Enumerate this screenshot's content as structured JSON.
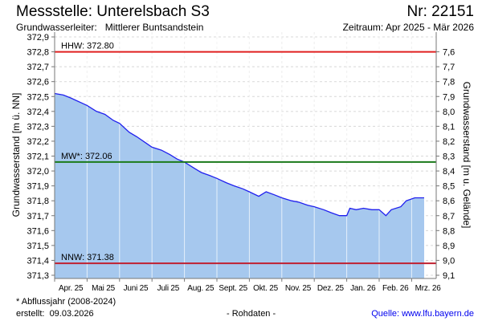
{
  "header": {
    "title": "Messstelle: Unterelsbach S3",
    "number": "Nr: 22151",
    "aquifer": "Grundwasserleiter:   Mittlerer Buntsandstein",
    "period": "Zeitraum: Apr 2025 - Mär 2026"
  },
  "footer": {
    "note": "* Abflussjahr (2008-2024)",
    "created": "erstellt:  09.03.2026",
    "raw": "- Rohdaten -",
    "source": "Quelle: www.lfu.bayern.de"
  },
  "chart_data": {
    "type": "area",
    "ylabel": "Grundwasserstand [m ü. NN]",
    "y2label": "Grundwasserstand [m u. Gelände]",
    "ylim": [
      371.25,
      372.92
    ],
    "yticks": [
      "372,9",
      "372,8",
      "372,7",
      "372,6",
      "372,5",
      "372,4",
      "372,3",
      "372,2",
      "372,1",
      "372,0",
      "371,9",
      "371,8",
      "371,7",
      "371,6",
      "371,5",
      "371,4",
      "371,3"
    ],
    "ytick_values": [
      372.9,
      372.8,
      372.7,
      372.6,
      372.5,
      372.4,
      372.3,
      372.2,
      372.1,
      372.0,
      371.9,
      371.8,
      371.7,
      371.6,
      371.5,
      371.4,
      371.3
    ],
    "y2ticks": [
      "7,6",
      "7,7",
      "7,8",
      "7,9",
      "8,0",
      "8,1",
      "8,2",
      "8,3",
      "8,4",
      "8,5",
      "8,6",
      "8,7",
      "8,8",
      "8,9",
      "9,0",
      "9,1"
    ],
    "y2_reference": 380.4,
    "xlim_days": [
      0,
      381
    ],
    "months": [
      "Apr. 25",
      "Mai 25",
      "Juni 25",
      "Juli 25",
      "Aug. 25",
      "Sept. 25",
      "Okt. 25",
      "Nov. 25",
      "Dez. 25",
      "Jan. 26",
      "Feb. 26",
      "Mrz. 26"
    ],
    "month_start_days": [
      0,
      30,
      61,
      91,
      122,
      153,
      183,
      214,
      244,
      275,
      306,
      330
    ],
    "reference_lines": [
      {
        "label": "HHW: 372.80",
        "value": 372.8,
        "color": "#e02020"
      },
      {
        "label": "MW*: 372.06",
        "value": 372.06,
        "color": "#1a7a1a"
      },
      {
        "label": "NNW: 371.38",
        "value": 371.38,
        "color": "#c02030"
      }
    ],
    "series": [
      {
        "name": "Grundwasserstand",
        "line_color": "#2020ee",
        "fill_color": "#a6c8ee",
        "days": [
          0,
          8,
          15,
          24,
          30,
          39,
          47,
          55,
          61,
          70,
          77,
          85,
          91,
          100,
          108,
          115,
          122,
          131,
          138,
          146,
          153,
          162,
          169,
          177,
          183,
          192,
          199,
          207,
          214,
          223,
          230,
          238,
          244,
          253,
          260,
          268,
          275,
          278,
          284,
          291,
          299,
          306,
          311,
          315,
          322,
          326,
          333,
          342
        ],
        "values": [
          372.52,
          372.51,
          372.49,
          372.46,
          372.44,
          372.4,
          372.38,
          372.34,
          372.32,
          372.26,
          372.23,
          372.19,
          372.16,
          372.14,
          372.11,
          372.08,
          372.06,
          372.02,
          371.99,
          371.97,
          371.95,
          371.92,
          371.9,
          371.88,
          371.86,
          371.83,
          371.86,
          371.84,
          371.82,
          371.8,
          371.79,
          371.77,
          371.76,
          371.74,
          371.72,
          371.7,
          371.7,
          371.75,
          371.74,
          371.75,
          371.74,
          371.74,
          371.7,
          371.74,
          371.76,
          371.8,
          371.82,
          371.82
        ]
      }
    ]
  }
}
